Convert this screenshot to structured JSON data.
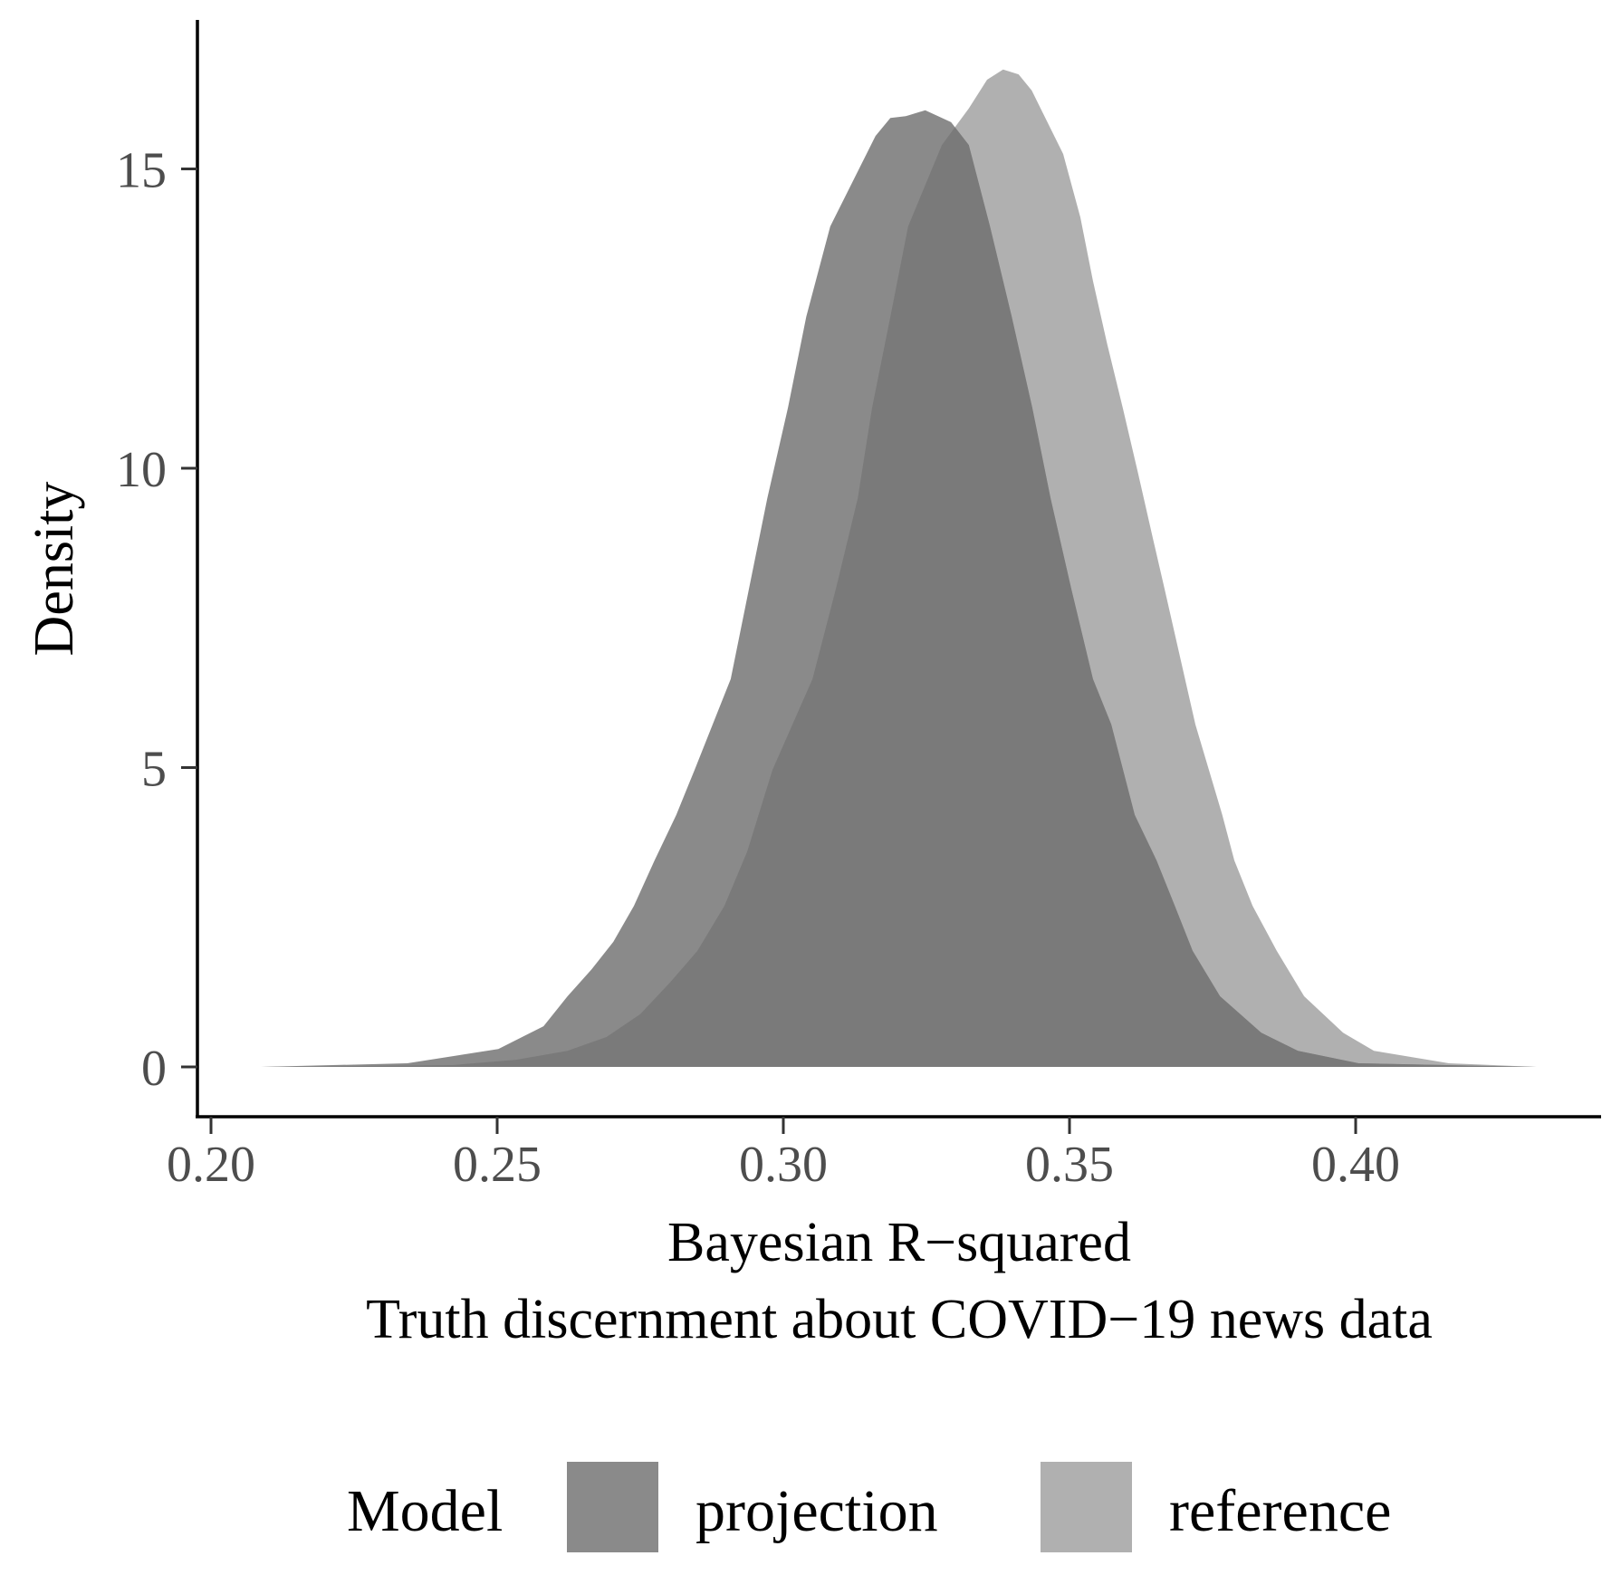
{
  "chart_data": {
    "type": "area",
    "subtype": "density",
    "title": "",
    "xlabel": "Bayesian R−squared",
    "subtitle": "Truth discernment about COVID−19 news data",
    "ylabel": "Density",
    "xlim": [
      0.1976,
      0.4429
    ],
    "ylim": [
      -0.83,
      17.45
    ],
    "grid": false,
    "legend_position": "bottom",
    "legend_title": "Model",
    "x_ticks": [
      {
        "value": 0.2,
        "label": "0.20"
      },
      {
        "value": 0.25,
        "label": "0.25"
      },
      {
        "value": 0.3,
        "label": "0.30"
      },
      {
        "value": 0.35,
        "label": "0.35"
      },
      {
        "value": 0.4,
        "label": "0.40"
      }
    ],
    "y_ticks": [
      {
        "value": 0,
        "label": "0"
      },
      {
        "value": 5,
        "label": "5"
      },
      {
        "value": 10,
        "label": "10"
      },
      {
        "value": 15,
        "label": "15"
      }
    ],
    "series": [
      {
        "name": "reference",
        "color": "#b0b0b0",
        "peak": {
          "x": 0.3384,
          "y": 16.66
        },
        "points": [
          [
            0.2087,
            0
          ],
          [
            0.2422,
            0.03
          ],
          [
            0.2533,
            0.12
          ],
          [
            0.2623,
            0.27
          ],
          [
            0.2691,
            0.5
          ],
          [
            0.275,
            0.88
          ],
          [
            0.2802,
            1.41
          ],
          [
            0.285,
            1.94
          ],
          [
            0.2897,
            2.69
          ],
          [
            0.2937,
            3.6
          ],
          [
            0.2981,
            4.96
          ],
          [
            0.3051,
            6.48
          ],
          [
            0.3092,
            7.99
          ],
          [
            0.313,
            9.5
          ],
          [
            0.3155,
            11.01
          ],
          [
            0.3187,
            12.53
          ],
          [
            0.3218,
            14.04
          ],
          [
            0.3277,
            15.4
          ],
          [
            0.3324,
            16.01
          ],
          [
            0.3356,
            16.49
          ],
          [
            0.3384,
            16.66
          ],
          [
            0.3411,
            16.58
          ],
          [
            0.3434,
            16.31
          ],
          [
            0.3489,
            15.25
          ],
          [
            0.3519,
            14.19
          ],
          [
            0.3541,
            13.13
          ],
          [
            0.3566,
            12.07
          ],
          [
            0.3593,
            11.01
          ],
          [
            0.3619,
            9.95
          ],
          [
            0.3644,
            8.9
          ],
          [
            0.3666,
            7.99
          ],
          [
            0.372,
            5.72
          ],
          [
            0.3767,
            4.21
          ],
          [
            0.3788,
            3.45
          ],
          [
            0.382,
            2.69
          ],
          [
            0.3862,
            1.94
          ],
          [
            0.391,
            1.18
          ],
          [
            0.3978,
            0.57
          ],
          [
            0.4032,
            0.27
          ],
          [
            0.4163,
            0.06
          ],
          [
            0.4316,
            0
          ]
        ]
      },
      {
        "name": "projection",
        "color": "#8a8a8a",
        "peak": {
          "x": 0.3248,
          "y": 15.98
        },
        "points": [
          [
            0.2087,
            0
          ],
          [
            0.2343,
            0.06
          ],
          [
            0.2502,
            0.3
          ],
          [
            0.2581,
            0.68
          ],
          [
            0.2623,
            1.18
          ],
          [
            0.2665,
            1.63
          ],
          [
            0.2703,
            2.09
          ],
          [
            0.2739,
            2.69
          ],
          [
            0.2775,
            3.45
          ],
          [
            0.2813,
            4.21
          ],
          [
            0.2845,
            4.96
          ],
          [
            0.2908,
            6.48
          ],
          [
            0.294,
            7.99
          ],
          [
            0.2972,
            9.5
          ],
          [
            0.3008,
            11.01
          ],
          [
            0.304,
            12.53
          ],
          [
            0.3082,
            14.04
          ],
          [
            0.3161,
            15.55
          ],
          [
            0.3187,
            15.85
          ],
          [
            0.3214,
            15.88
          ],
          [
            0.3248,
            15.98
          ],
          [
            0.3293,
            15.78
          ],
          [
            0.3324,
            15.4
          ],
          [
            0.3361,
            14.04
          ],
          [
            0.3399,
            12.53
          ],
          [
            0.3435,
            11.01
          ],
          [
            0.3467,
            9.5
          ],
          [
            0.3503,
            7.99
          ],
          [
            0.3541,
            6.48
          ],
          [
            0.3573,
            5.72
          ],
          [
            0.3614,
            4.21
          ],
          [
            0.3652,
            3.45
          ],
          [
            0.3684,
            2.69
          ],
          [
            0.3715,
            1.94
          ],
          [
            0.3763,
            1.18
          ],
          [
            0.3835,
            0.57
          ],
          [
            0.3899,
            0.27
          ],
          [
            0.4005,
            0.06
          ],
          [
            0.4316,
            0
          ]
        ]
      }
    ],
    "overlap_color": "#7a7a7a"
  },
  "legend": {
    "title": "Model",
    "items": [
      {
        "label": "projection",
        "color": "#8a8a8a"
      },
      {
        "label": "reference",
        "color": "#b0b0b0"
      }
    ]
  }
}
